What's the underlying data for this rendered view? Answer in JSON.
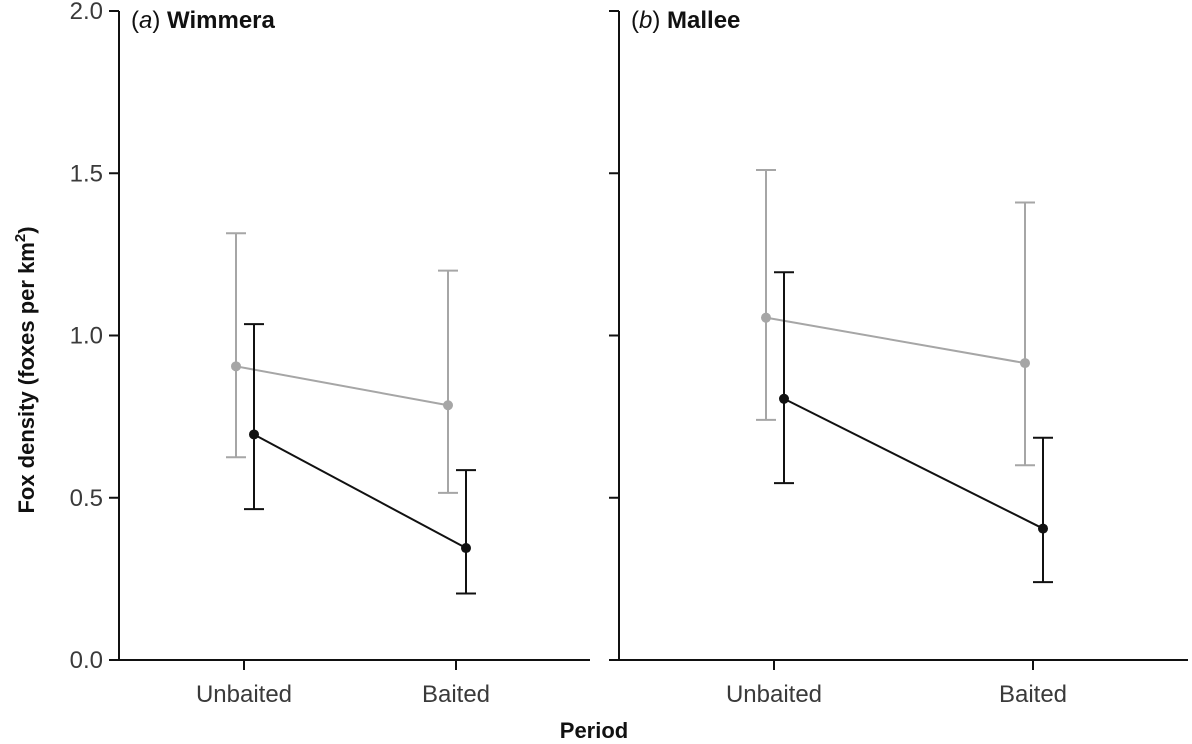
{
  "chart_data": {
    "type": "line",
    "ylabel": "Fox density (foxes per km",
    "ylabel_sup": "2",
    "ylabel_close": ")",
    "xlabel": "Period",
    "ylim": [
      0,
      2
    ],
    "yticks": [
      "0.0",
      "0.5",
      "1.0",
      "1.5",
      "2.0"
    ],
    "ytick_values": [
      0,
      0.5,
      1.0,
      1.5,
      2.0
    ],
    "categories": [
      "Unbaited",
      "Baited"
    ],
    "series_colors": {
      "grey": "#a6a6a6",
      "black": "#111111"
    },
    "panels": [
      {
        "letter": "a",
        "site": "Wimmera",
        "series": [
          {
            "name": "grey",
            "values": [
              0.905,
              0.785
            ],
            "lower": [
              0.625,
              0.515
            ],
            "upper": [
              1.315,
              1.2
            ]
          },
          {
            "name": "black",
            "values": [
              0.695,
              0.345
            ],
            "lower": [
              0.465,
              0.205
            ],
            "upper": [
              1.035,
              0.585
            ]
          }
        ]
      },
      {
        "letter": "b",
        "site": "Mallee",
        "series": [
          {
            "name": "grey",
            "values": [
              1.055,
              0.915
            ],
            "lower": [
              0.74,
              0.6
            ],
            "upper": [
              1.51,
              1.41
            ]
          },
          {
            "name": "black",
            "values": [
              0.805,
              0.405
            ],
            "lower": [
              0.545,
              0.24
            ],
            "upper": [
              1.195,
              0.685
            ]
          }
        ]
      }
    ]
  }
}
